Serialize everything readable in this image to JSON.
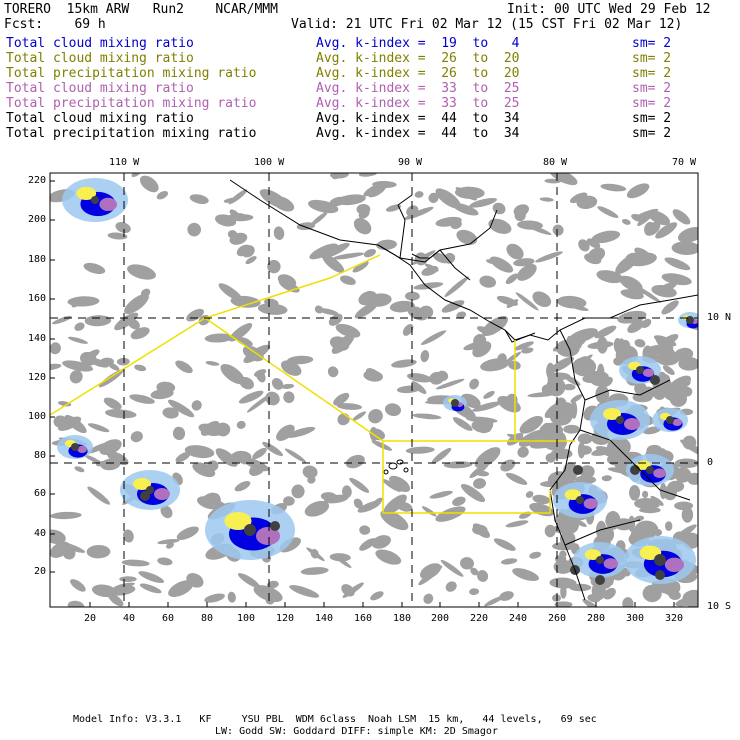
{
  "header": {
    "model": "TORERO  15km ARW   Run2    NCAR/MMM",
    "init": "Init: 00 UTC Wed 29 Feb 12",
    "fcst": "Fcst:    69 h",
    "valid": "Valid: 21 UTC Fri 02 Mar 12 (15 CST Fri 02 Mar 12)"
  },
  "legend": [
    {
      "field": "Total cloud mixing ratio",
      "index": "Avg. k-index =  19  to   4",
      "sm": "sm= 2",
      "color": "#0000cc"
    },
    {
      "field": "Total cloud mixing ratio",
      "index": "Avg. k-index =  26  to  20",
      "sm": "sm= 2",
      "color": "#808000"
    },
    {
      "field": "Total precipitation mixing ratio",
      "index": "Avg. k-index =  26  to  20",
      "sm": "sm= 2",
      "color": "#808000"
    },
    {
      "field": "Total cloud mixing ratio",
      "index": "Avg. k-index =  33  to  25",
      "sm": "sm= 2",
      "color": "#b060b0"
    },
    {
      "field": "Total precipitation mixing ratio",
      "index": "Avg. k-index =  33  to  25",
      "sm": "sm= 2",
      "color": "#b060b0"
    },
    {
      "field": "Total cloud mixing ratio",
      "index": "Avg. k-index =  44  to  34",
      "sm": "sm= 2",
      "color": "#000000"
    },
    {
      "field": "Total precipitation mixing ratio",
      "index": "Avg. k-index =  44  to  34",
      "sm": "sm= 2",
      "color": "#000000"
    }
  ],
  "map": {
    "lon_labels": [
      "110 W",
      "100 W",
      "90 W",
      "80 W",
      "70 W"
    ],
    "lat_labels": [
      "10 N",
      "0",
      "10 S"
    ],
    "x_ticks": [
      "20",
      "40",
      "60",
      "80",
      "100",
      "120",
      "140",
      "160",
      "180",
      "200",
      "220",
      "240",
      "260",
      "280",
      "300",
      "320"
    ],
    "y_ticks": [
      "220",
      "200",
      "180",
      "160",
      "140",
      "120",
      "100",
      "80",
      "60",
      "40",
      "20"
    ],
    "colors": {
      "cloud_gray": "#a0a0a0",
      "dark": "#404040",
      "blue": "#0000e0",
      "light_blue": "#9ec8f0",
      "yellow": "#f8f050",
      "purple": "#b070c0",
      "boundary": "#f0e000"
    }
  },
  "footer": {
    "line1": "Model Info: V3.3.1   KF     YSU PBL  WDM 6class  Noah LSM  15 km,   44 levels,   69 sec",
    "line2": "LW: Godd SW: Goddard DIFF: simple KM: 2D Smagor"
  }
}
